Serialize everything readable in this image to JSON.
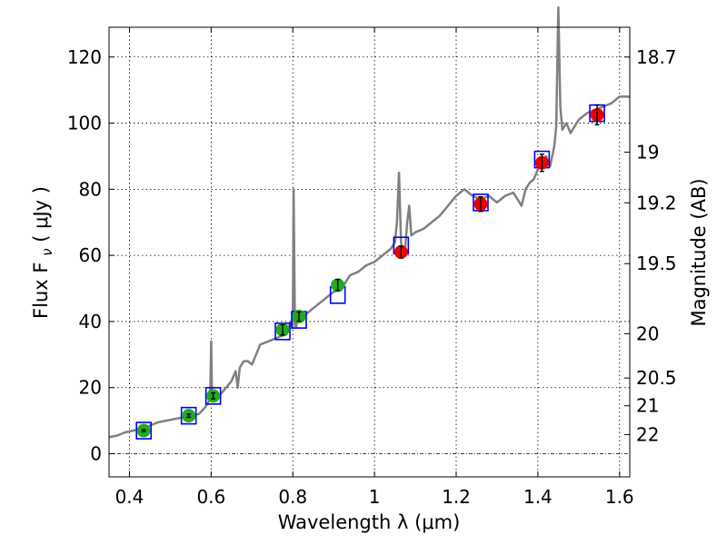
{
  "chart_data": {
    "type": "scatter",
    "xlabel": "Wavelength  λ (μm)",
    "ylabel": "Flux  F",
    "ylabel_sub": "ν",
    "ylabel_unit": "  ( μJy )",
    "y2label": "Magnitude (AB)",
    "xlim": [
      0.35,
      1.625
    ],
    "ylim": [
      -7,
      129
    ],
    "xticks": [
      0.4,
      0.6,
      0.8,
      1.0,
      1.2,
      1.4,
      1.6
    ],
    "xtick_labels": [
      "0.4",
      "0.6",
      "0.8",
      "1",
      "1.2",
      "1.4",
      "1.6"
    ],
    "yticks": [
      0,
      20,
      40,
      60,
      80,
      100,
      120
    ],
    "ytick_labels": [
      "0",
      "20",
      "40",
      "60",
      "80",
      "100",
      "120"
    ],
    "y2ticks": [
      {
        "label": "18.7",
        "flux": 120
      },
      {
        "label": "19",
        "flux": 91.2
      },
      {
        "label": "19.2",
        "flux": 75.9
      },
      {
        "label": "19.5",
        "flux": 57.5
      },
      {
        "label": "20",
        "flux": 36.3
      },
      {
        "label": "20.5",
        "flux": 22.9
      },
      {
        "label": "21",
        "flux": 14.5
      },
      {
        "label": "22",
        "flux": 5.8
      }
    ],
    "grid": true,
    "colors": {
      "spectrum": "#808080",
      "model": "#0000ff",
      "optical": "#22aa22",
      "infrared": "#ee0000"
    },
    "series": [
      {
        "kind": "spectrum",
        "x": [
          0.35,
          0.37,
          0.39,
          0.41,
          0.43,
          0.45,
          0.47,
          0.49,
          0.51,
          0.53,
          0.55,
          0.57,
          0.585,
          0.595,
          0.598,
          0.6,
          0.602,
          0.605,
          0.61,
          0.63,
          0.65,
          0.66,
          0.665,
          0.67,
          0.68,
          0.69,
          0.7,
          0.72,
          0.74,
          0.76,
          0.78,
          0.79,
          0.795,
          0.8,
          0.802,
          0.805,
          0.808,
          0.81,
          0.82,
          0.84,
          0.86,
          0.88,
          0.9,
          0.92,
          0.94,
          0.96,
          0.98,
          1.0,
          1.02,
          1.04,
          1.05,
          1.055,
          1.06,
          1.065,
          1.07,
          1.075,
          1.08,
          1.085,
          1.09,
          1.1,
          1.12,
          1.14,
          1.16,
          1.18,
          1.2,
          1.22,
          1.24,
          1.26,
          1.28,
          1.3,
          1.32,
          1.34,
          1.36,
          1.37,
          1.38,
          1.39,
          1.4,
          1.42,
          1.43,
          1.44,
          1.445,
          1.45,
          1.455,
          1.46,
          1.47,
          1.48,
          1.5,
          1.52,
          1.54,
          1.56,
          1.58,
          1.6,
          1.625
        ],
        "y": [
          5,
          5.5,
          6.5,
          7,
          7.5,
          8.5,
          9.5,
          10,
          10.5,
          11,
          11.5,
          12,
          14,
          16,
          20,
          34,
          18,
          16,
          16,
          19,
          22,
          25,
          20,
          26,
          28,
          28,
          27,
          33,
          34,
          35,
          36,
          38,
          40,
          38,
          80,
          40,
          38,
          40,
          41,
          43,
          45,
          47,
          49,
          50,
          54,
          55,
          57,
          58,
          60,
          62,
          64,
          70,
          85,
          64,
          60,
          62,
          70,
          75,
          66,
          67,
          68,
          70,
          72,
          75,
          78,
          80,
          78,
          77,
          78,
          76,
          78,
          79,
          75,
          80,
          82,
          83,
          86,
          90,
          87,
          93,
          99,
          135,
          105,
          98,
          100,
          97,
          101,
          103,
          104,
          105,
          106,
          108,
          108
        ]
      },
      {
        "kind": "model",
        "x": [
          0.435,
          0.545,
          0.605,
          0.775,
          0.815,
          0.91,
          1.065,
          1.26,
          1.41,
          1.545
        ],
        "y": [
          7,
          11.5,
          17.5,
          37,
          40.5,
          48,
          63,
          76,
          89,
          103
        ]
      },
      {
        "kind": "optical",
        "x": [
          0.435,
          0.545,
          0.605,
          0.775,
          0.815,
          0.91
        ],
        "y": [
          7,
          11.5,
          17.5,
          37.5,
          41.5,
          51
        ],
        "err": [
          0.3,
          0.5,
          0.9,
          1.6,
          1.4,
          1.7
        ]
      },
      {
        "kind": "infrared",
        "x": [
          1.065,
          1.26,
          1.41,
          1.545
        ],
        "y": [
          61,
          75.5,
          88,
          102.5
        ],
        "err": [
          1.8,
          2.2,
          2.6,
          3.0
        ]
      }
    ]
  }
}
